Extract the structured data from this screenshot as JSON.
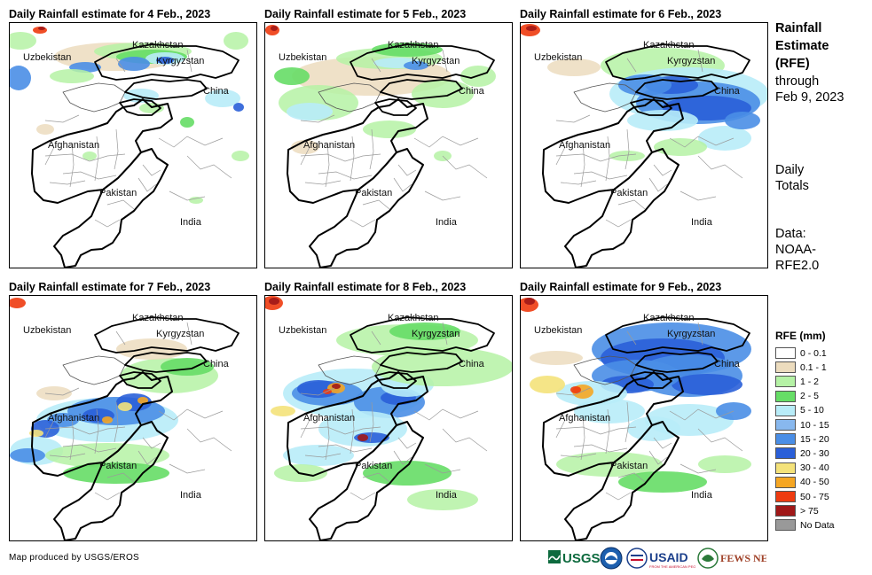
{
  "panels": [
    {
      "title": "Daily Rainfall estimate for 4 Feb., 2023"
    },
    {
      "title": "Daily Rainfall estimate for 5 Feb., 2023"
    },
    {
      "title": "Daily Rainfall estimate for 6 Feb., 2023"
    },
    {
      "title": "Daily Rainfall estimate for 7 Feb., 2023"
    },
    {
      "title": "Daily Rainfall estimate for 8 Feb., 2023"
    },
    {
      "title": "Daily Rainfall estimate for 9 Feb., 2023"
    }
  ],
  "country_labels": {
    "kazakhstan": "Kazakhstan",
    "uzbekistan": "Uzbekistan",
    "kyrgyzstan": "Kyrgyzstan",
    "china": "China",
    "afghanistan": "Afghanistan",
    "pakistan": "Pakistan",
    "india": "India"
  },
  "side_panel": {
    "title_line1": "Rainfall",
    "title_line2": "Estimate",
    "title_line3": "(RFE)",
    "through": "through",
    "date": "Feb 9, 2023",
    "daily": "Daily",
    "totals": "Totals",
    "data_label": "Data:",
    "source_line1": "NOAA-",
    "source_line2": "RFE2.0"
  },
  "legend": {
    "title": "RFE (mm)",
    "items": [
      {
        "label": "0 - 0.1",
        "color": "#ffffff"
      },
      {
        "label": "0.1 - 1",
        "color": "#ecdcbe"
      },
      {
        "label": "1 - 2",
        "color": "#b5f2a5"
      },
      {
        "label": "2 - 5",
        "color": "#66dd66"
      },
      {
        "label": "5 - 10",
        "color": "#b8ecf8"
      },
      {
        "label": "10 - 15",
        "color": "#88b8ee"
      },
      {
        "label": "15 - 20",
        "color": "#4a8ee6"
      },
      {
        "label": "20 - 30",
        "color": "#2a5fd8"
      },
      {
        "label": "30 - 40",
        "color": "#f4e27a"
      },
      {
        "label": "40 - 50",
        "color": "#f5a623"
      },
      {
        "label": "50 - 75",
        "color": "#ee3b10"
      },
      {
        "label": "> 75",
        "color": "#a01818"
      },
      {
        "label": "No Data",
        "color": "#999999"
      }
    ]
  },
  "footer": {
    "credit": "Map produced by USGS/EROS",
    "logos": [
      "USGS",
      "NOAA",
      "USAID",
      "FEWS NET"
    ]
  }
}
